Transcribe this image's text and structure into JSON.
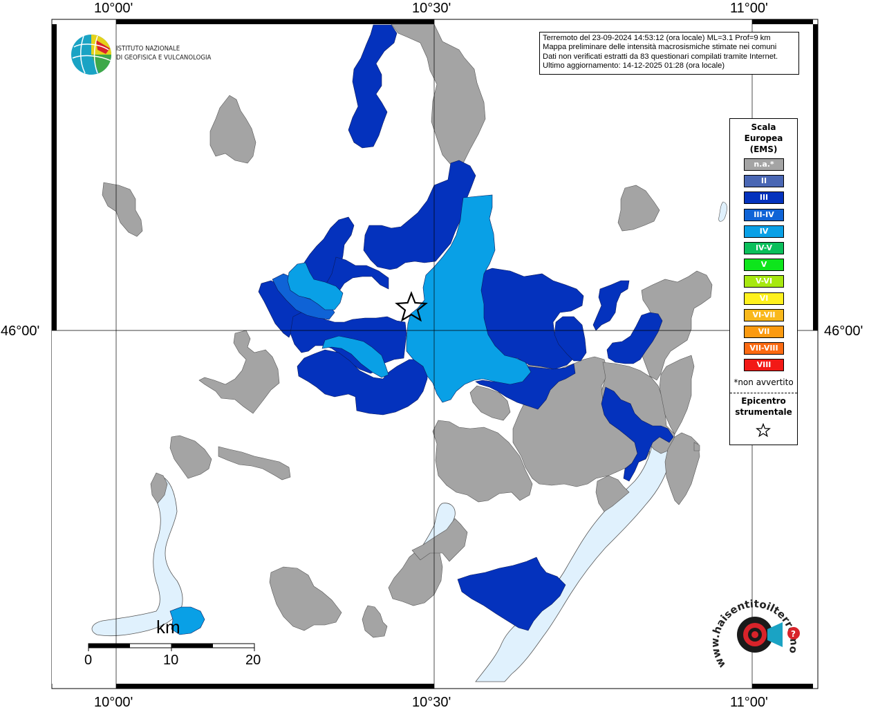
{
  "map": {
    "lon_labels": [
      "10°00'",
      "10°30'",
      "11°00'"
    ],
    "lat_labels": [
      "46°00'"
    ]
  },
  "info": {
    "line1": "Terremoto del 23-09-2024 14:53:12 (ora locale) ML=3.1 Prof=9 km",
    "line2": "Mappa preliminare delle intensità macrosismiche stimate nei comuni",
    "line3": "Dati non verificati estratti da 83 questionari compilati tramite Internet.",
    "line4": "Ultimo aggiornamento: 14-12-2025 01:28 (ora locale)"
  },
  "institute": {
    "line1": "ISTITUTO NAZIONALE",
    "line2": "DI GEOFISICA E VULCANOLOGIA"
  },
  "legend": {
    "title1": "Scala",
    "title2": "Europea",
    "title3": "(EMS)",
    "items": [
      {
        "label": "n.a.*",
        "color": "#a4a4a4"
      },
      {
        "label": "II",
        "color": "#4a67b4"
      },
      {
        "label": "III",
        "color": "#0432bd"
      },
      {
        "label": "III-IV",
        "color": "#0f63d6"
      },
      {
        "label": "IV",
        "color": "#09a0e6"
      },
      {
        "label": "IV-V",
        "color": "#0bbf5b"
      },
      {
        "label": "V",
        "color": "#0ee51c"
      },
      {
        "label": "V-VI",
        "color": "#a7e810"
      },
      {
        "label": "VI",
        "color": "#fff11e"
      },
      {
        "label": "VI-VII",
        "color": "#f9b81b"
      },
      {
        "label": "VII",
        "color": "#fb9a10"
      },
      {
        "label": "VII-VIII",
        "color": "#fb6a12"
      },
      {
        "label": "VIII",
        "color": "#f21916"
      }
    ],
    "note": "*non avvertito",
    "epicenter1": "Epicentro",
    "epicenter2": "strumentale"
  },
  "scalebar": {
    "unit": "km",
    "labels": [
      "0",
      "10",
      "20"
    ]
  },
  "logo_hsit": {
    "text": "www.haisentitoilterremoto.it"
  }
}
